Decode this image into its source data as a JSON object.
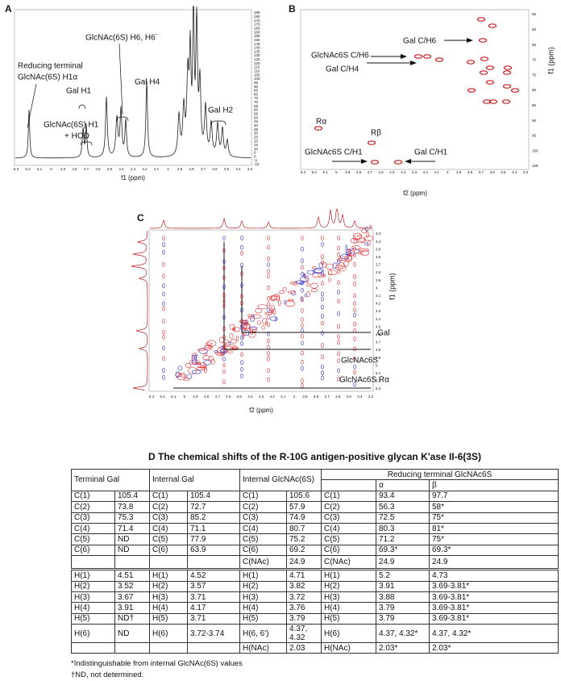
{
  "panels": {
    "A": {
      "label": "A",
      "annotations": [
        "Reducing terminal",
        "GlcNAc(6S) H1α",
        "GlcNAc(6S) H6, H6´",
        "Gal H1",
        "Gal H4",
        "GlcNAc(6S) H1",
        "+ HOD",
        "Gal H2"
      ],
      "x_ticks": [
        5.3,
        5.2,
        5.1,
        5.0,
        4.9,
        4.8,
        4.7,
        4.6,
        4.5,
        4.4,
        4.3,
        4.2,
        4.1,
        4.0,
        3.9,
        3.8,
        3.7,
        3.6,
        3.5,
        3.4,
        3.3
      ],
      "y_ticks": [
        185,
        180,
        175,
        170,
        165,
        160,
        155,
        150,
        145,
        140,
        135,
        130,
        125,
        120,
        115,
        110,
        105,
        100,
        95,
        90,
        85,
        80,
        75,
        70,
        65,
        60,
        55,
        50,
        45,
        40,
        35,
        30,
        25,
        20,
        15,
        10,
        5,
        0,
        -5,
        -10
      ],
      "x_label": "f1 (ppm)"
    },
    "B": {
      "label": "B",
      "annotations": [
        "Gal C/H6",
        "GlcNAc6S C/H6",
        "Gal C/H4",
        "Rα",
        "Rβ",
        "GlcNAc6S C/H1",
        "Gal C/H1"
      ],
      "x_ticks": [
        5.3,
        5.2,
        5.1,
        5.0,
        4.9,
        4.8,
        4.7,
        4.6,
        4.5,
        4.4,
        4.3,
        4.2,
        4.1,
        4.0,
        3.9,
        3.8,
        3.7,
        3.6,
        3.5,
        3.4,
        3.3
      ],
      "y_ticks": [
        55,
        60,
        65,
        70,
        75,
        80,
        85,
        90,
        95,
        100,
        105
      ],
      "x_label": "f2 (ppm)",
      "y_label": "f1 (ppm)"
    },
    "C": {
      "label": "C",
      "annotations": [
        "Gal",
        "GlcNAc6S",
        "GlcNAc6S Rα"
      ],
      "x_ticks": [
        5.3,
        5.2,
        5.1,
        5.0,
        4.9,
        4.8,
        4.7,
        4.6,
        4.5,
        4.4,
        4.3,
        4.2,
        4.1,
        4.0,
        3.9,
        3.8,
        3.7,
        3.6,
        3.5,
        3.4,
        3.3
      ],
      "y_ticks": [
        3.3,
        3.4,
        3.5,
        3.6,
        3.7,
        3.8,
        3.9,
        4.0,
        4.1,
        4.2,
        4.3,
        4.4,
        4.5,
        4.6,
        4.7,
        4.8,
        4.9,
        5.0,
        5.1,
        5.2,
        5.3
      ],
      "x_label": "f2 (ppm)",
      "y_label": "f1 (ppm)"
    }
  },
  "table": {
    "title": "D The chemical shifts of the R-10G antigen-positive glycan K'ase II-6(3S)",
    "header": [
      "Terminal Gal",
      "Internal Gal",
      "Internal GlcNAc(6S)",
      "Reducing terminal GlcNAc6S"
    ],
    "subheader": [
      "α",
      "β"
    ],
    "rows": [
      [
        "C(1)",
        "105.4",
        "C(1)",
        "105.4",
        "C(1)",
        "105.6",
        "C(1)",
        "93.4",
        "97.7"
      ],
      [
        "C(2)",
        "73.8",
        "C(2)",
        "72.7",
        "C(2)",
        "57.9",
        "C(2)",
        "56.3",
        "58*"
      ],
      [
        "C(3)",
        "75.3",
        "C(3)",
        "85.2",
        "C(3)",
        "74.9",
        "C(3)",
        "72.5",
        "75*"
      ],
      [
        "C(4)",
        "71.4",
        "C(4)",
        "71.1",
        "C(4)",
        "80.7",
        "C(4)",
        "80.3",
        "81*"
      ],
      [
        "C(5)",
        "ND",
        "C(5)",
        "77.9",
        "C(5)",
        "75.2",
        "C(5)",
        "71.2",
        "75*"
      ],
      [
        "C(6)",
        "ND",
        "C(6)",
        "63.9",
        "C(6)",
        "69.2",
        "C(6)",
        "69.3*",
        "69.3*"
      ],
      [
        null,
        null,
        null,
        null,
        "C(NAc)",
        "24.9",
        "C(NAc)",
        "24.9",
        "24.9"
      ],
      [
        "H(1)",
        "4.51",
        "H(1)",
        "4.52",
        "H(1)",
        "4.71",
        "H(1)",
        "5.2",
        "4.73"
      ],
      [
        "H(2)",
        "3.52",
        "H(2)",
        "3.57",
        "H(2)",
        "3.82",
        "H(2)",
        "3.91",
        "3.69-3.81*"
      ],
      [
        "H(3)",
        "3.67",
        "H(3)",
        "3.71",
        "H(3)",
        "3.72",
        "H(3)",
        "3.88",
        "3.69-3.81*"
      ],
      [
        "H(4)",
        "3.91",
        "H(4)",
        "4.17",
        "H(4)",
        "3.76",
        "H(4)",
        "3.79",
        "3.69-3.81*"
      ],
      [
        "H(5)",
        "ND†",
        "H(5)",
        "3.71",
        "H(5)",
        "3.79",
        "H(5)",
        "3.79",
        "3.69-3.81*"
      ],
      [
        "H(6)",
        "ND",
        "H(6)",
        "3.72-3.74",
        "H(6, 6')",
        "4.37, 4.32",
        "H(6)",
        "4.37, 4.32*",
        "4.37, 4.32*"
      ],
      [
        null,
        null,
        null,
        null,
        "H(NAc)",
        "2.03",
        "H(NAc)",
        "2.03*",
        "2.03*"
      ]
    ],
    "footnotes": [
      "*Indistinguishable from internal GlcNAc(6S) values",
      "†ND, not determined."
    ]
  }
}
